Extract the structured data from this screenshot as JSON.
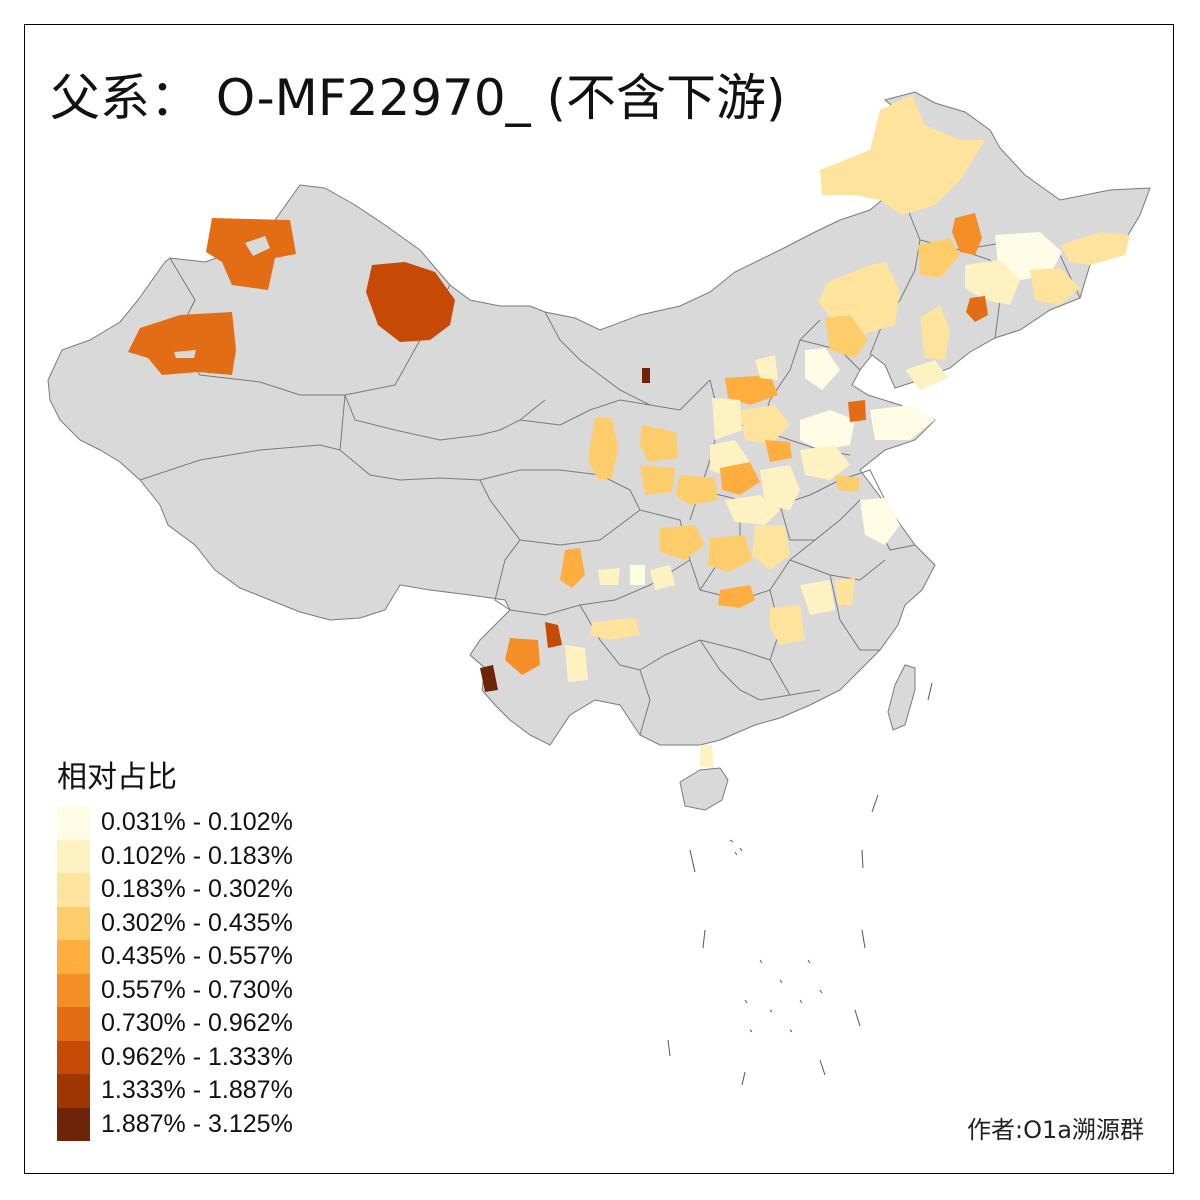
{
  "title": "父系： O-MF22970_ (不含下游)",
  "legend": {
    "title": "相对占比",
    "items": [
      {
        "label": "0.031% - 0.102%",
        "color": "#FFFCE6"
      },
      {
        "label": "0.102% - 0.183%",
        "color": "#FFF2C2"
      },
      {
        "label": "0.183% - 0.302%",
        "color": "#FEE39C"
      },
      {
        "label": "0.302% - 0.435%",
        "color": "#FECD6B"
      },
      {
        "label": "0.435% - 0.557%",
        "color": "#FDAE3E"
      },
      {
        "label": "0.557% - 0.730%",
        "color": "#F68E27"
      },
      {
        "label": "0.730% - 0.962%",
        "color": "#E36D14"
      },
      {
        "label": "0.962% - 1.333%",
        "color": "#C64A05"
      },
      {
        "label": "1.333% - 1.887%",
        "color": "#9E3503"
      },
      {
        "label": "1.887% - 3.125%",
        "color": "#6E2406"
      }
    ]
  },
  "credit": "作者:O1a溯源群",
  "colors": {
    "land": "#D9D9D9",
    "border": "#7a7a7a",
    "background": "#FFFFFF"
  }
}
